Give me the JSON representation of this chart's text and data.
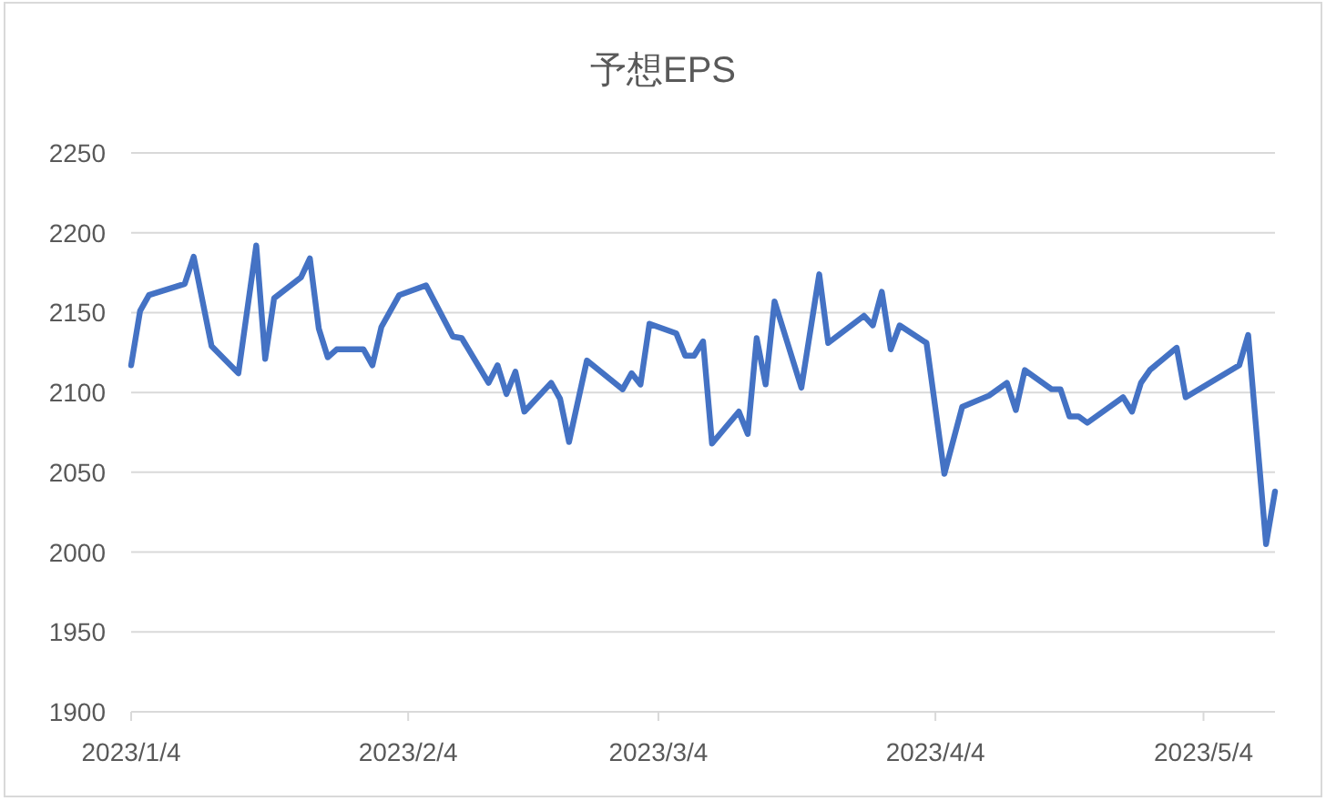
{
  "chart_data": {
    "type": "line",
    "title": "予想EPS",
    "x": [
      "2023-01-04",
      "2023-01-05",
      "2023-01-06",
      "2023-01-10",
      "2023-01-11",
      "2023-01-13",
      "2023-01-16",
      "2023-01-18",
      "2023-01-19",
      "2023-01-20",
      "2023-01-23",
      "2023-01-24",
      "2023-01-25",
      "2023-01-26",
      "2023-01-27",
      "2023-01-30",
      "2023-01-31",
      "2023-02-01",
      "2023-02-03",
      "2023-02-06",
      "2023-02-09",
      "2023-02-10",
      "2023-02-13",
      "2023-02-14",
      "2023-02-15",
      "2023-02-16",
      "2023-02-17",
      "2023-02-20",
      "2023-02-21",
      "2023-02-22",
      "2023-02-24",
      "2023-02-28",
      "2023-03-01",
      "2023-03-02",
      "2023-03-03",
      "2023-03-06",
      "2023-03-07",
      "2023-03-08",
      "2023-03-09",
      "2023-03-10",
      "2023-03-13",
      "2023-03-14",
      "2023-03-15",
      "2023-03-16",
      "2023-03-17",
      "2023-03-20",
      "2023-03-22",
      "2023-03-23",
      "2023-03-27",
      "2023-03-28",
      "2023-03-29",
      "2023-03-30",
      "2023-03-31",
      "2023-04-03",
      "2023-04-05",
      "2023-04-07",
      "2023-04-10",
      "2023-04-12",
      "2023-04-13",
      "2023-04-14",
      "2023-04-17",
      "2023-04-18",
      "2023-04-19",
      "2023-04-20",
      "2023-04-21",
      "2023-04-25",
      "2023-04-26",
      "2023-04-27",
      "2023-04-28",
      "2023-05-01",
      "2023-05-02",
      "2023-05-08",
      "2023-05-09",
      "2023-05-11",
      "2023-05-12"
    ],
    "values": [
      2117,
      2151,
      2161,
      2168,
      2185,
      2129,
      2112,
      2192,
      2121,
      2159,
      2172,
      2184,
      2140,
      2122,
      2127,
      2127,
      2117,
      2141,
      2161,
      2167,
      2135,
      2134,
      2106,
      2117,
      2099,
      2113,
      2088,
      2106,
      2096,
      2069,
      2120,
      2102,
      2112,
      2105,
      2143,
      2137,
      2123,
      2123,
      2132,
      2068,
      2088,
      2074,
      2134,
      2105,
      2157,
      2103,
      2174,
      2131,
      2148,
      2142,
      2163,
      2127,
      2142,
      2131,
      2049,
      2091,
      2098,
      2106,
      2089,
      2114,
      2102,
      2102,
      2085,
      2085,
      2081,
      2097,
      2088,
      2106,
      2114,
      2128,
      2097,
      2117,
      2136,
      2005,
      2038
    ],
    "color": "#4472c4",
    "xlim": [
      "2023-01-04",
      "2023-05-12"
    ],
    "xticks": [
      {
        "value": "2023-01-04",
        "label": "2023/1/4"
      },
      {
        "value": "2023-02-04",
        "label": "2023/2/4"
      },
      {
        "value": "2023-03-04",
        "label": "2023/3/4"
      },
      {
        "value": "2023-04-04",
        "label": "2023/4/4"
      },
      {
        "value": "2023-05-04",
        "label": "2023/5/4"
      }
    ],
    "ylim": [
      1900,
      2250
    ],
    "yticks": [
      1900,
      1950,
      2000,
      2050,
      2100,
      2150,
      2200,
      2250
    ],
    "grid": "y"
  }
}
